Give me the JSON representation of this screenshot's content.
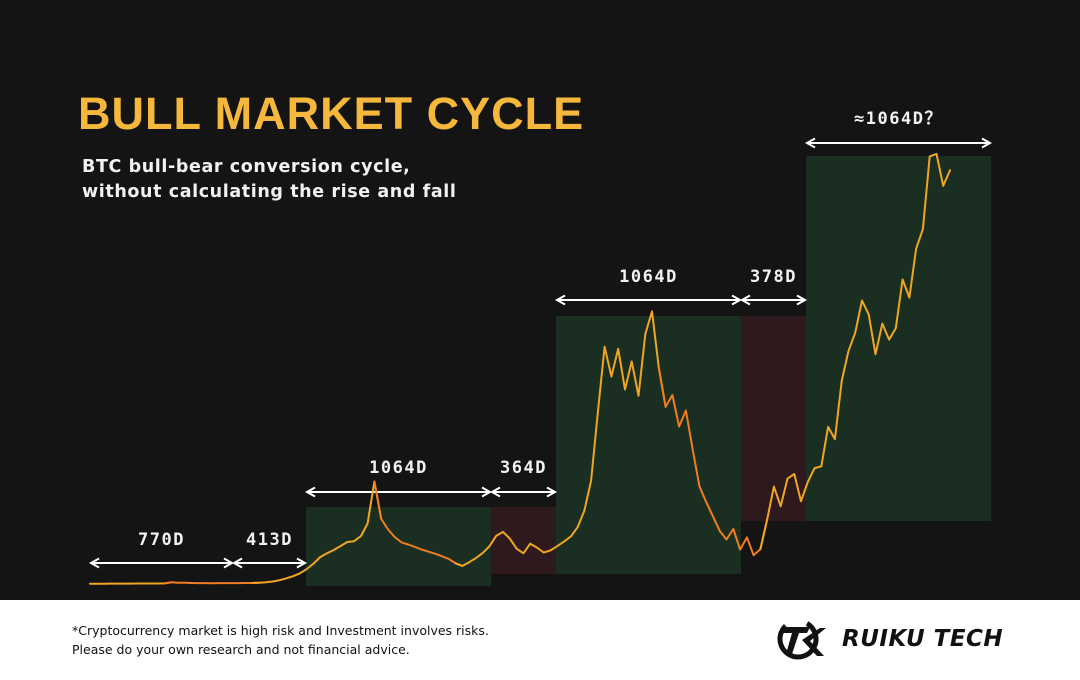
{
  "title": "BULL MARKET CYCLE",
  "subtitle_line1": "BTC bull-bear conversion cycle,",
  "subtitle_line2": "without calculating the rise and fall",
  "disclaimer_line1": "*Cryptocurrency market is high risk and Investment involves risks.",
  "disclaimer_line2": "Please do your own research and not financial advice.",
  "brand": "RUIKU TECH",
  "colors": {
    "background": "#141414",
    "accent": "#f5b83d",
    "bull_phase": "#1a2e22",
    "bear_phase": "#2e1a1c",
    "price_bull": "#f0a623",
    "price_bear": "#f07d1e",
    "text": "#f2f2f2"
  },
  "chart_data": {
    "type": "line",
    "title": "BULL MARKET CYCLE",
    "series": [
      {
        "values": [
          0.08,
          0.08,
          0.08,
          0.09,
          0.09,
          0.1,
          0.1,
          0.11,
          0.12,
          0.12,
          0.13,
          0.14,
          0.4,
          0.32,
          0.28,
          0.24,
          0.22,
          0.21,
          0.2,
          0.22,
          0.21,
          0.22,
          0.22,
          0.23,
          0.24,
          0.3,
          0.42,
          0.6,
          0.9,
          1.35,
          1.85,
          2.55,
          3.55,
          4.85,
          6.4,
          7.3,
          8.1,
          9.05,
          10.0,
          10.2,
          11.4,
          14.4,
          24.4,
          15.5,
          13.0,
          11.2,
          9.9,
          9.4,
          8.8,
          8.2,
          7.7,
          7.2,
          6.6,
          5.95,
          4.9,
          4.3,
          5.2,
          6.2,
          7.4,
          9.0,
          11.5,
          12.4,
          10.8,
          8.4,
          7.3,
          9.6,
          8.7,
          7.5,
          8.0,
          9.0,
          10.1,
          11.3,
          13.5,
          17.4,
          24.6,
          41.0,
          56.5,
          49.4,
          56.0,
          46.3,
          53.0,
          44.8,
          59.5,
          64.9,
          51.5,
          42.2,
          45.0,
          37.5,
          41.3,
          32.0,
          23.3,
          19.5,
          16.1,
          12.6,
          10.6,
          13.1,
          8.2,
          11.1,
          6.85,
          8.3,
          15.4,
          23.2,
          18.5,
          25.1,
          26.2,
          19.7,
          24.3,
          27.6,
          28.0,
          37.4,
          34.5,
          48.3,
          55.4,
          59.8,
          67.5,
          64.2,
          54.7,
          62.0,
          58.2,
          60.9,
          72.5,
          68.2,
          79.8,
          84.5,
          101.8,
          102.4,
          94.8,
          98.5
        ]
      }
    ],
    "periods": [
      {
        "label": "770D",
        "days": 770,
        "phase": "bull",
        "box": false
      },
      {
        "label": "413D",
        "days": 413,
        "phase": "bear",
        "box": false
      },
      {
        "label": "1064D",
        "days": 1064,
        "phase": "bull",
        "box": true
      },
      {
        "label": "364D",
        "days": 364,
        "phase": "bear",
        "box": true
      },
      {
        "label": "1064D",
        "days": 1064,
        "phase": "bull",
        "box": true
      },
      {
        "label": "378D",
        "days": 378,
        "phase": "bear",
        "box": true
      },
      {
        "label": "≈1064D？",
        "days": 1064,
        "phase": "bull",
        "box": true
      }
    ],
    "grid": false,
    "legend": "none"
  }
}
